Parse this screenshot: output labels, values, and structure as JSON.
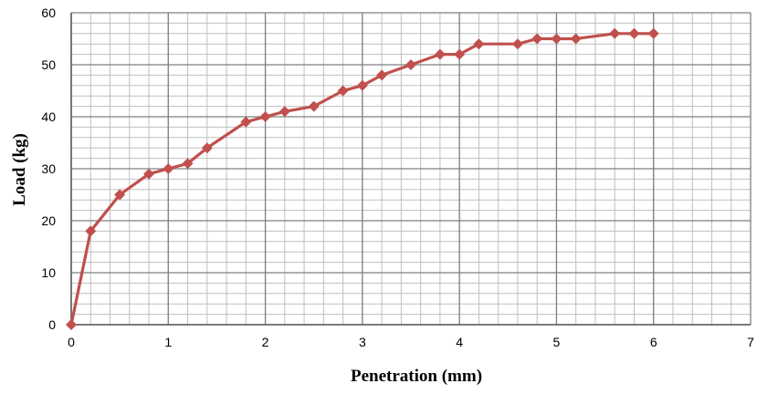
{
  "chart_data": {
    "type": "line",
    "title": "",
    "xlabel": "Penetration (mm)",
    "ylabel": "Load (kg)",
    "xlim": [
      0,
      7
    ],
    "ylim": [
      0,
      60
    ],
    "x_major_ticks": [
      0,
      1,
      2,
      3,
      4,
      5,
      6,
      7
    ],
    "y_major_ticks": [
      0,
      10,
      20,
      30,
      40,
      50,
      60
    ],
    "x_minor_step": 0.2,
    "y_minor_step": 2,
    "grid": true,
    "legend": "none",
    "marker": "diamond",
    "colors": {
      "series": "#c0504d",
      "major_grid": "#7f7f7f",
      "minor_grid": "#bfbfbf"
    },
    "series": [
      {
        "x": [
          0,
          0.2,
          0.5,
          0.8,
          1.0,
          1.2,
          1.4,
          1.8,
          2.0,
          2.2,
          2.5,
          2.8,
          3.0,
          3.2,
          3.5,
          3.8,
          4.0,
          4.2,
          4.6,
          4.8,
          5.0,
          5.2,
          5.6,
          5.8,
          6.0
        ],
        "y": [
          0,
          18,
          25,
          29,
          30,
          31,
          34,
          39,
          40,
          41,
          42,
          45,
          46,
          48,
          50,
          52,
          52,
          54,
          54,
          55,
          55,
          55,
          56,
          56,
          56
        ]
      }
    ]
  }
}
